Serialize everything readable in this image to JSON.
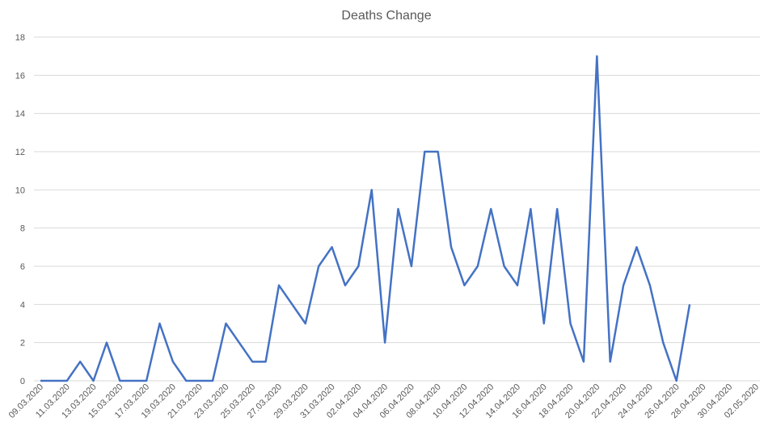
{
  "chart_data": {
    "type": "line",
    "title": "Deaths Change",
    "categories": [
      "09.03.2020",
      null,
      "11.03.2020",
      null,
      "13.03.2020",
      null,
      "15.03.2020",
      null,
      "17.03.2020",
      null,
      "19.03.2020",
      null,
      "21.03.2020",
      null,
      "23.03.2020",
      null,
      "25.03.2020",
      null,
      "27.03.2020",
      null,
      "29.03.2020",
      null,
      "31.03.2020",
      null,
      "02.04.2020",
      null,
      "04.04.2020",
      null,
      "06.04.2020",
      null,
      "08.04.2020",
      null,
      "10.04.2020",
      null,
      "12.04.2020",
      null,
      "14.04.2020",
      null,
      "16.04.2020",
      null,
      "18.04.2020",
      null,
      "20.04.2020",
      null,
      "22.04.2020",
      null,
      "24.04.2020",
      null,
      "26.04.2020",
      null,
      "28.04.2020",
      null,
      "30.04.2020",
      null,
      "02.05.2020"
    ],
    "series": [
      {
        "color": "#4472c4",
        "values": [
          0,
          0,
          0,
          1,
          0,
          2,
          0,
          0,
          0,
          3,
          1,
          0,
          0,
          0,
          3,
          2,
          1,
          1,
          5,
          4,
          3,
          6,
          7,
          5,
          6,
          10,
          2,
          9,
          6,
          12,
          12,
          7,
          5,
          6,
          9,
          6,
          5,
          9,
          3,
          9,
          3,
          1,
          17,
          1,
          5,
          7,
          5,
          2,
          0,
          4,
          null,
          null,
          null,
          null,
          null
        ]
      }
    ],
    "ylim": [
      0,
      18
    ],
    "yticks": [
      0,
      2,
      4,
      6,
      8,
      10,
      12,
      14,
      16,
      18
    ],
    "grid": true
  }
}
